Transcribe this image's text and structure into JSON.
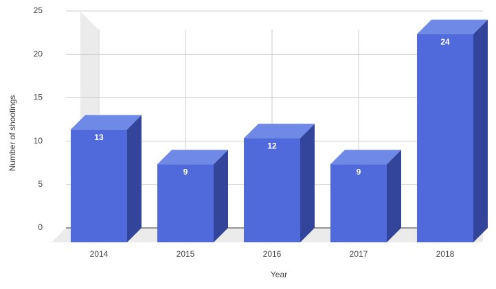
{
  "chart_data": {
    "type": "bar3d",
    "categories": [
      "2014",
      "2015",
      "2016",
      "2017",
      "2018"
    ],
    "values": [
      13,
      9,
      12,
      9,
      24
    ],
    "color": "#5069db",
    "top_color": "#6f8ae6",
    "side_color": "#32459b",
    "xlabel": "Year",
    "ylabel": "Number of shootings",
    "ylim": [
      0,
      25
    ],
    "yticks": [
      0,
      5,
      10,
      15,
      20,
      25
    ],
    "grid": true
  }
}
